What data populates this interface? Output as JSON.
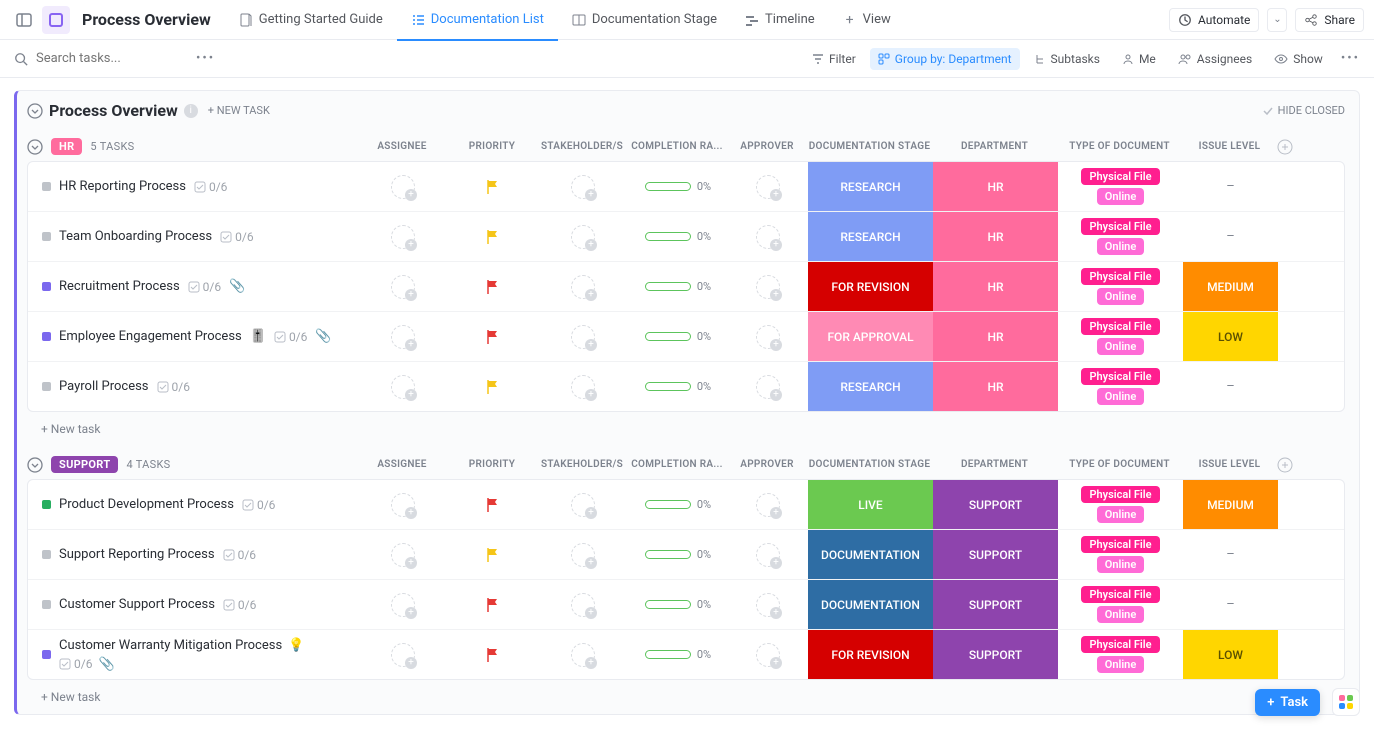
{
  "colors": {
    "accent": "#2a8cff",
    "purple": "#7b68ee",
    "research_bg": "#7f9cf5",
    "hr_bg": "#ff6b9d",
    "revision_bg": "#d50000",
    "approval_bg": "#ff8ab4",
    "live_bg": "#6bc950",
    "support_bg": "#8e44ad",
    "documentation_bg": "#2e6da4",
    "medium_bg": "#ff8c00",
    "low_bg": "#ffd600",
    "low_text": "#5b5000",
    "tag_physical": "#ff1f8f",
    "tag_online": "#ff6bd6",
    "sq_gray": "#bfc3c9",
    "sq_purple": "#7b68ee",
    "sq_green": "#27ae60",
    "hr_badge": "#ff6b9d",
    "support_badge": "#8e44ad"
  },
  "topbar": {
    "page_title": "Process Overview",
    "views": [
      {
        "id": "getting-started",
        "label": "Getting Started Guide",
        "icon": "doc"
      },
      {
        "id": "doc-list",
        "label": "Documentation List",
        "icon": "list",
        "active": true
      },
      {
        "id": "doc-stage",
        "label": "Documentation Stage",
        "icon": "board"
      },
      {
        "id": "timeline",
        "label": "Timeline",
        "icon": "timeline"
      },
      {
        "id": "add-view",
        "label": "View",
        "icon": "plus"
      }
    ],
    "automate": "Automate",
    "share": "Share"
  },
  "toolbar": {
    "search_placeholder": "Search tasks...",
    "filter": "Filter",
    "groupby": "Group by: Department",
    "subtasks": "Subtasks",
    "me": "Me",
    "assignees": "Assignees",
    "show": "Show"
  },
  "block": {
    "title": "Process Overview",
    "new_task": "+ NEW TASK",
    "hide_closed": "HIDE CLOSED"
  },
  "columns": [
    "ASSIGNEE",
    "PRIORITY",
    "STAKEHOLDER/S",
    "COMPLETION RA...",
    "APPROVER",
    "DOCUMENTATION STAGE",
    "DEPARTMENT",
    "TYPE OF DOCUMENT",
    "ISSUE LEVEL"
  ],
  "new_row": "+ New task",
  "groups": [
    {
      "id": "hr",
      "label": "HR",
      "badge_bg": "#ff6b9d",
      "count": "5 TASKS",
      "tasks": [
        {
          "name": "HR Reporting Process",
          "sq": "#bfc3c9",
          "sub": "0/6",
          "flag": "#f5c518",
          "pct": "0%",
          "stage": {
            "t": "RESEARCH",
            "bg": "#7f9cf5"
          },
          "dept": {
            "t": "HR",
            "bg": "#ff6b9d"
          },
          "tags": [
            "Physical File",
            "Online"
          ],
          "issue": null,
          "attach": false,
          "emoji": null
        },
        {
          "name": "Team Onboarding Process",
          "sq": "#bfc3c9",
          "sub": "0/6",
          "flag": "#f5c518",
          "pct": "0%",
          "stage": {
            "t": "RESEARCH",
            "bg": "#7f9cf5"
          },
          "dept": {
            "t": "HR",
            "bg": "#ff6b9d"
          },
          "tags": [
            "Physical File",
            "Online"
          ],
          "issue": null,
          "attach": false,
          "emoji": null
        },
        {
          "name": "Recruitment Process",
          "sq": "#7b68ee",
          "sub": "0/6",
          "flag": "#e53935",
          "pct": "0%",
          "stage": {
            "t": "FOR REVISION",
            "bg": "#d50000"
          },
          "dept": {
            "t": "HR",
            "bg": "#ff6b9d"
          },
          "tags": [
            "Physical File",
            "Online"
          ],
          "issue": {
            "t": "MEDIUM",
            "bg": "#ff8c00",
            "fg": "#fff"
          },
          "attach": true,
          "emoji": null
        },
        {
          "name": "Employee Engagement Process",
          "sq": "#7b68ee",
          "sub": "0/6",
          "flag": "#e53935",
          "pct": "0%",
          "stage": {
            "t": "FOR APPROVAL",
            "bg": "#ff8ab4"
          },
          "dept": {
            "t": "HR",
            "bg": "#ff6b9d"
          },
          "tags": [
            "Physical File",
            "Online"
          ],
          "issue": {
            "t": "LOW",
            "bg": "#ffd600",
            "fg": "#5b5000"
          },
          "attach": true,
          "emoji": "🎚️"
        },
        {
          "name": "Payroll Process",
          "sq": "#bfc3c9",
          "sub": "0/6",
          "flag": "#f5c518",
          "pct": "0%",
          "stage": {
            "t": "RESEARCH",
            "bg": "#7f9cf5"
          },
          "dept": {
            "t": "HR",
            "bg": "#ff6b9d"
          },
          "tags": [
            "Physical File",
            "Online"
          ],
          "issue": null,
          "attach": false,
          "emoji": null
        }
      ]
    },
    {
      "id": "support",
      "label": "SUPPORT",
      "badge_bg": "#8e44ad",
      "count": "4 TASKS",
      "tasks": [
        {
          "name": "Product Development Process",
          "sq": "#27ae60",
          "sub": "0/6",
          "flag": "#e53935",
          "pct": "0%",
          "stage": {
            "t": "LIVE",
            "bg": "#6bc950"
          },
          "dept": {
            "t": "SUPPORT",
            "bg": "#8e44ad"
          },
          "tags": [
            "Physical File",
            "Online"
          ],
          "issue": {
            "t": "MEDIUM",
            "bg": "#ff8c00",
            "fg": "#fff"
          },
          "attach": false,
          "emoji": null
        },
        {
          "name": "Support Reporting Process",
          "sq": "#bfc3c9",
          "sub": "0/6",
          "flag": "#f5c518",
          "pct": "0%",
          "stage": {
            "t": "DOCUMENTATION",
            "bg": "#2e6da4"
          },
          "dept": {
            "t": "SUPPORT",
            "bg": "#8e44ad"
          },
          "tags": [
            "Physical File",
            "Online"
          ],
          "issue": null,
          "attach": false,
          "emoji": null
        },
        {
          "name": "Customer Support Process",
          "sq": "#bfc3c9",
          "sub": "0/6",
          "flag": "#e53935",
          "pct": "0%",
          "stage": {
            "t": "DOCUMENTATION",
            "bg": "#2e6da4"
          },
          "dept": {
            "t": "SUPPORT",
            "bg": "#8e44ad"
          },
          "tags": [
            "Physical File",
            "Online"
          ],
          "issue": null,
          "attach": false,
          "emoji": null
        },
        {
          "name": "Customer Warranty Mitigation Process",
          "sq": "#7b68ee",
          "sub": "0/6",
          "flag": "#e53935",
          "pct": "0%",
          "stage": {
            "t": "FOR REVISION",
            "bg": "#d50000"
          },
          "dept": {
            "t": "SUPPORT",
            "bg": "#8e44ad"
          },
          "tags": [
            "Physical File",
            "Online"
          ],
          "issue": {
            "t": "LOW",
            "bg": "#ffd600",
            "fg": "#5b5000"
          },
          "attach": true,
          "emoji": "💡",
          "wrap": true
        }
      ]
    }
  ],
  "fab": {
    "label": "Task"
  }
}
